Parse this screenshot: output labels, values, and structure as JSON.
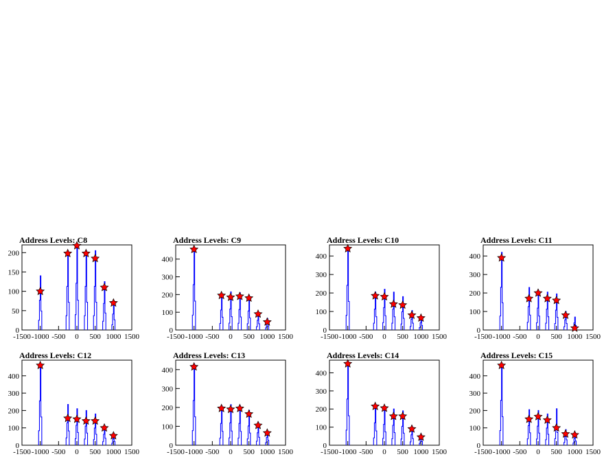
{
  "chart_data": [
    {
      "type": "histogram",
      "title": "Address Levels: C8",
      "xlim": [
        -1500,
        1500
      ],
      "ylim": [
        0,
        220
      ],
      "yticks": [
        0,
        50,
        100,
        150,
        200
      ],
      "xticks": [
        -1500,
        -1000,
        -500,
        0,
        500,
        1000,
        1500
      ],
      "histogram_color": "#0000ff",
      "peaks": [
        {
          "x": -1000,
          "y": 140
        },
        {
          "x": -250,
          "y": 205
        },
        {
          "x": 0,
          "y": 220
        },
        {
          "x": 250,
          "y": 205
        },
        {
          "x": 500,
          "y": 205
        },
        {
          "x": 750,
          "y": 125
        },
        {
          "x": 1000,
          "y": 75
        }
      ],
      "markers": [
        {
          "x": -1000,
          "y": 100
        },
        {
          "x": -250,
          "y": 198
        },
        {
          "x": 0,
          "y": 218
        },
        {
          "x": 250,
          "y": 198
        },
        {
          "x": 500,
          "y": 185
        },
        {
          "x": 750,
          "y": 110
        },
        {
          "x": 1000,
          "y": 70
        }
      ]
    },
    {
      "type": "histogram",
      "title": "Address Levels: C9",
      "xlim": [
        -1500,
        1500
      ],
      "ylim": [
        0,
        480
      ],
      "yticks": [
        0,
        100,
        200,
        300,
        400
      ],
      "xticks": [
        -1500,
        -1000,
        -500,
        0,
        500,
        1000,
        1500
      ],
      "histogram_color": "#0000ff",
      "peaks": [
        {
          "x": -1000,
          "y": 465
        },
        {
          "x": -250,
          "y": 205
        },
        {
          "x": 0,
          "y": 215
        },
        {
          "x": 250,
          "y": 210
        },
        {
          "x": 500,
          "y": 195
        },
        {
          "x": 750,
          "y": 100
        },
        {
          "x": 1000,
          "y": 65
        }
      ],
      "markers": [
        {
          "x": -1000,
          "y": 455
        },
        {
          "x": -250,
          "y": 195
        },
        {
          "x": 0,
          "y": 185
        },
        {
          "x": 250,
          "y": 190
        },
        {
          "x": 500,
          "y": 180
        },
        {
          "x": 750,
          "y": 90
        },
        {
          "x": 1000,
          "y": 45
        }
      ]
    },
    {
      "type": "histogram",
      "title": "Address Levels: C10",
      "xlim": [
        -1500,
        1500
      ],
      "ylim": [
        0,
        460
      ],
      "yticks": [
        0,
        100,
        200,
        300,
        400
      ],
      "xticks": [
        -1500,
        -1000,
        -500,
        0,
        500,
        1000,
        1500
      ],
      "histogram_color": "#0000ff",
      "peaks": [
        {
          "x": -1000,
          "y": 440
        },
        {
          "x": -250,
          "y": 205
        },
        {
          "x": 0,
          "y": 220
        },
        {
          "x": 250,
          "y": 205
        },
        {
          "x": 500,
          "y": 180
        },
        {
          "x": 750,
          "y": 105
        },
        {
          "x": 1000,
          "y": 70
        }
      ],
      "markers": [
        {
          "x": -1000,
          "y": 440
        },
        {
          "x": -250,
          "y": 185
        },
        {
          "x": 0,
          "y": 180
        },
        {
          "x": 250,
          "y": 140
        },
        {
          "x": 500,
          "y": 135
        },
        {
          "x": 750,
          "y": 80
        },
        {
          "x": 1000,
          "y": 65
        }
      ]
    },
    {
      "type": "histogram",
      "title": "Address Levels: C11",
      "xlim": [
        -1500,
        1500
      ],
      "ylim": [
        0,
        460
      ],
      "yticks": [
        0,
        100,
        200,
        300,
        400
      ],
      "xticks": [
        -1500,
        -1000,
        -500,
        0,
        500,
        1000,
        1500
      ],
      "histogram_color": "#0000ff",
      "peaks": [
        {
          "x": -1000,
          "y": 420
        },
        {
          "x": -250,
          "y": 230
        },
        {
          "x": 0,
          "y": 215
        },
        {
          "x": 250,
          "y": 205
        },
        {
          "x": 500,
          "y": 195
        },
        {
          "x": 750,
          "y": 100
        },
        {
          "x": 1000,
          "y": 70
        }
      ],
      "markers": [
        {
          "x": -1000,
          "y": 390
        },
        {
          "x": -250,
          "y": 170
        },
        {
          "x": 0,
          "y": 200
        },
        {
          "x": 250,
          "y": 170
        },
        {
          "x": 500,
          "y": 160
        },
        {
          "x": 750,
          "y": 80
        },
        {
          "x": 1000,
          "y": 10
        }
      ]
    },
    {
      "type": "histogram",
      "title": "Address Levels: C12",
      "xlim": [
        -1500,
        1500
      ],
      "ylim": [
        0,
        490
      ],
      "yticks": [
        0,
        100,
        200,
        300,
        400
      ],
      "xticks": [
        -1500,
        -1000,
        -500,
        0,
        500,
        1000,
        1500
      ],
      "histogram_color": "#0000ff",
      "peaks": [
        {
          "x": -1000,
          "y": 465
        },
        {
          "x": -250,
          "y": 235
        },
        {
          "x": 0,
          "y": 210
        },
        {
          "x": 250,
          "y": 200
        },
        {
          "x": 500,
          "y": 180
        },
        {
          "x": 750,
          "y": 115
        },
        {
          "x": 1000,
          "y": 65
        }
      ],
      "markers": [
        {
          "x": -1000,
          "y": 460
        },
        {
          "x": -250,
          "y": 155
        },
        {
          "x": 0,
          "y": 150
        },
        {
          "x": 250,
          "y": 140
        },
        {
          "x": 500,
          "y": 140
        },
        {
          "x": 750,
          "y": 100
        },
        {
          "x": 1000,
          "y": 55
        }
      ]
    },
    {
      "type": "histogram",
      "title": "Address Levels: C13",
      "xlim": [
        -1500,
        1500
      ],
      "ylim": [
        0,
        450
      ],
      "yticks": [
        0,
        100,
        200,
        300,
        400
      ],
      "xticks": [
        -1500,
        -1000,
        -500,
        0,
        500,
        1000,
        1500
      ],
      "histogram_color": "#0000ff",
      "peaks": [
        {
          "x": -1000,
          "y": 430
        },
        {
          "x": -250,
          "y": 210
        },
        {
          "x": 0,
          "y": 215
        },
        {
          "x": 250,
          "y": 210
        },
        {
          "x": 500,
          "y": 185
        },
        {
          "x": 750,
          "y": 120
        },
        {
          "x": 1000,
          "y": 75
        }
      ],
      "markers": [
        {
          "x": -1000,
          "y": 415
        },
        {
          "x": -250,
          "y": 195
        },
        {
          "x": 0,
          "y": 190
        },
        {
          "x": 250,
          "y": 195
        },
        {
          "x": 500,
          "y": 165
        },
        {
          "x": 750,
          "y": 105
        },
        {
          "x": 1000,
          "y": 65
        }
      ]
    },
    {
      "type": "histogram",
      "title": "Address Levels: C14",
      "xlim": [
        -1500,
        1500
      ],
      "ylim": [
        0,
        470
      ],
      "yticks": [
        0,
        100,
        200,
        300,
        400
      ],
      "xticks": [
        -1500,
        -1000,
        -500,
        0,
        500,
        1000,
        1500
      ],
      "histogram_color": "#0000ff",
      "peaks": [
        {
          "x": -1000,
          "y": 465
        },
        {
          "x": -250,
          "y": 225
        },
        {
          "x": 0,
          "y": 210
        },
        {
          "x": 250,
          "y": 200
        },
        {
          "x": 500,
          "y": 190
        },
        {
          "x": 750,
          "y": 105
        },
        {
          "x": 1000,
          "y": 60
        }
      ],
      "markers": [
        {
          "x": -1000,
          "y": 450
        },
        {
          "x": -250,
          "y": 215
        },
        {
          "x": 0,
          "y": 205
        },
        {
          "x": 250,
          "y": 160
        },
        {
          "x": 500,
          "y": 160
        },
        {
          "x": 750,
          "y": 90
        },
        {
          "x": 1000,
          "y": 45
        }
      ]
    },
    {
      "type": "histogram",
      "title": "Address Levels: C15",
      "xlim": [
        -1500,
        1500
      ],
      "ylim": [
        0,
        490
      ],
      "yticks": [
        0,
        100,
        200,
        300,
        400
      ],
      "xticks": [
        -1500,
        -1000,
        -500,
        0,
        500,
        1000,
        1500
      ],
      "histogram_color": "#0000ff",
      "peaks": [
        {
          "x": -1000,
          "y": 470
        },
        {
          "x": -250,
          "y": 205
        },
        {
          "x": 0,
          "y": 200
        },
        {
          "x": 250,
          "y": 180
        },
        {
          "x": 500,
          "y": 210
        },
        {
          "x": 750,
          "y": 90
        },
        {
          "x": 1000,
          "y": 70
        }
      ],
      "markers": [
        {
          "x": -1000,
          "y": 460
        },
        {
          "x": -250,
          "y": 150
        },
        {
          "x": 0,
          "y": 165
        },
        {
          "x": 250,
          "y": 145
        },
        {
          "x": 500,
          "y": 100
        },
        {
          "x": 750,
          "y": 65
        },
        {
          "x": 1000,
          "y": 60
        }
      ]
    }
  ]
}
